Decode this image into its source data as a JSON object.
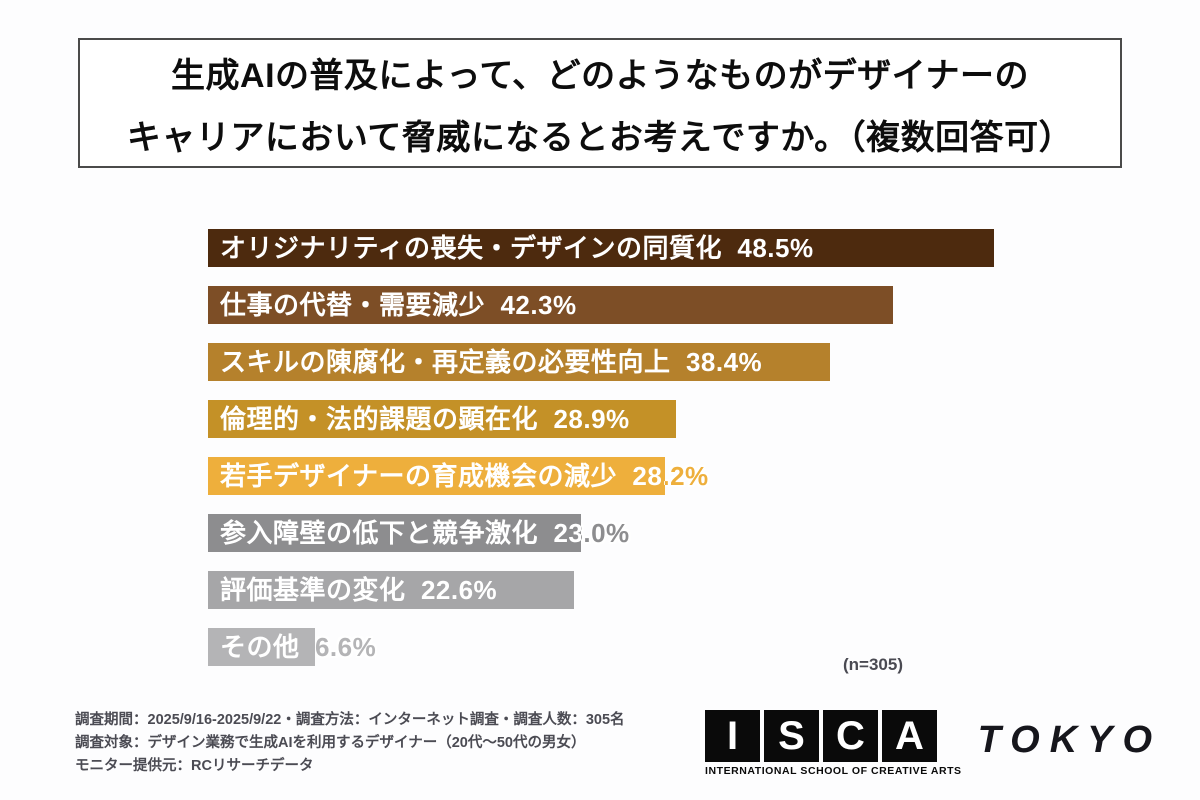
{
  "title": {
    "line1": "生成AIの普及によって、どのようなものがデザイナーの",
    "line2": "キャリアにおいて脅威になるとお考えですか。（複数回答可）"
  },
  "chart_data": {
    "type": "bar",
    "orientation": "horizontal",
    "title": "生成AIの普及によって、どのようなものがデザイナーのキャリアにおいて脅威になるとお考えですか。（複数回答可）",
    "unit": "%",
    "xlim": [
      0,
      50
    ],
    "grid": false,
    "legend": false,
    "categories": [
      "オリジナリティの喪失・デザインの同質化",
      "仕事の代替・需要減少",
      "スキルの陳腐化・再定義の必要性向上",
      "倫理的・法的課題の顕在化",
      "若手デザイナーの育成機会の減少",
      "参入障壁の低下と競争激化",
      "評価基準の変化",
      "その他"
    ],
    "values": [
      48.5,
      42.3,
      38.4,
      28.9,
      28.2,
      23.0,
      22.6,
      6.6
    ],
    "bar_colors": [
      "#4d2a0e",
      "#7d4e26",
      "#b5812c",
      "#c49127",
      "#eeaf3c",
      "#8d8d8f",
      "#a6a6a8",
      "#b4b4b6"
    ],
    "sample_note": "(n=305)"
  },
  "footer": {
    "lines": [
      "調査期間：2025/9/16-2025/9/22・調査方法：インターネット調査・調査人数：305名",
      "調査対象：デザイン業務で生成AIを利用するデザイナー（20代〜50代の男女）",
      "モニター提供元：RCリサーチデータ"
    ]
  },
  "logo": {
    "letters": [
      "I",
      "S",
      "C",
      "A"
    ],
    "wordmark": "TOKYO",
    "subtitle": "INTERNATIONAL SCHOOL OF CREATIVE ARTS"
  }
}
